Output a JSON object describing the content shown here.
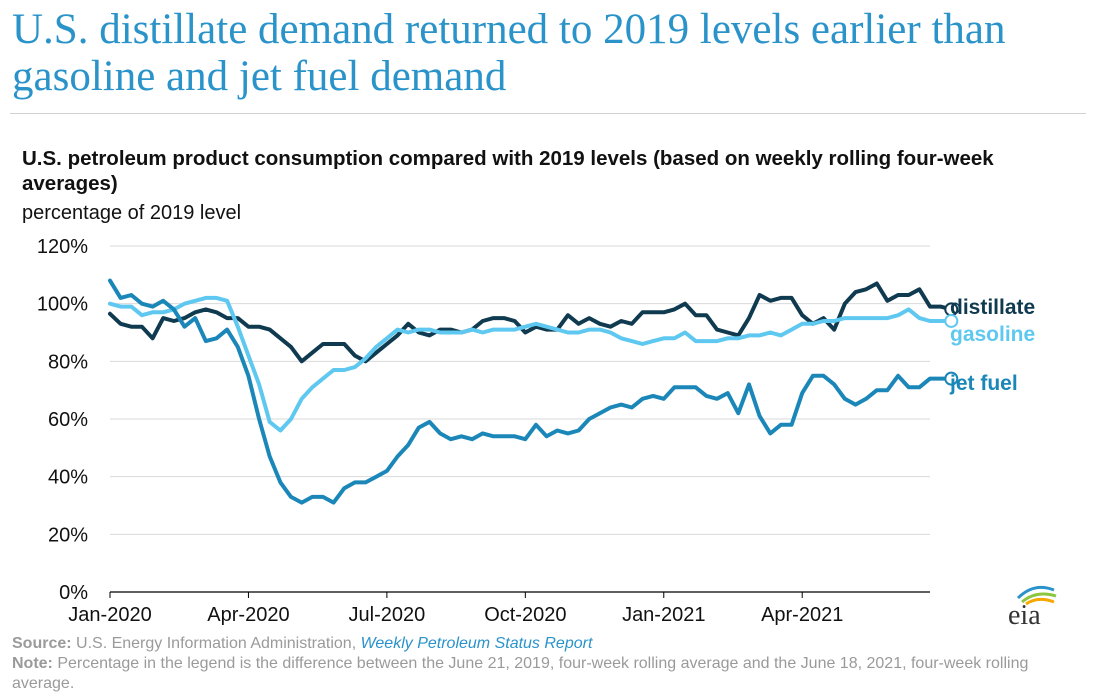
{
  "headline": "U.S. distillate demand returned to 2019 levels earlier than gasoline and jet fuel demand",
  "subtitle": "U.S. petroleum product consumption compared with 2019 levels (based on weekly rolling four-week averages)",
  "unit_label": "percentage of 2019 level",
  "footer": {
    "source_label": "Source:",
    "source_text": " U.S. Energy Information Administration, ",
    "source_link": "Weekly Petroleum Status Report",
    "note_label": "Note:",
    "note_text": " Percentage in the legend is the difference between the June 21, 2019, four-week rolling average and the June 18, 2021, four-week rolling average."
  },
  "logo_text": "eia",
  "colors": {
    "distillate": "#0f3a4f",
    "gasoline": "#5fc8f0",
    "jet_fuel": "#1b87b8",
    "grid": "#d9d9d9",
    "axis": "#000000"
  },
  "chart_data": {
    "type": "line",
    "title": "U.S. petroleum product consumption compared with 2019 levels (based on weekly rolling four-week averages)",
    "ylabel": "percentage of 2019 level",
    "ylim": [
      0,
      120
    ],
    "yticks": [
      0,
      20,
      40,
      60,
      80,
      100,
      120
    ],
    "ytick_labels": [
      "0%",
      "20%",
      "40%",
      "60%",
      "80%",
      "100%",
      "120%"
    ],
    "x_start_week": 0,
    "x_end_week": 77,
    "xticks": [
      {
        "label": "Jan-2020",
        "week": 0
      },
      {
        "label": "Apr-2020",
        "week": 13
      },
      {
        "label": "Jul-2020",
        "week": 26
      },
      {
        "label": "Oct-2020",
        "week": 39
      },
      {
        "label": "Jan-2021",
        "week": 52
      },
      {
        "label": "Apr-2021",
        "week": 65
      }
    ],
    "grid": true,
    "legend_position": "right, inline at series ends",
    "series": [
      {
        "name": "distillate",
        "color_key": "distillate",
        "values": [
          96.5,
          93,
          92,
          92,
          88,
          95,
          94,
          95,
          97,
          98,
          97,
          95,
          95,
          92,
          92,
          91,
          88,
          85,
          80,
          83,
          86,
          86,
          86,
          82,
          80,
          83,
          86,
          89,
          93,
          90,
          89,
          91,
          91,
          90,
          91,
          94,
          95,
          95,
          94,
          90,
          92,
          91,
          91,
          96,
          93,
          95,
          93,
          92,
          94,
          93,
          97,
          97,
          97,
          98,
          100,
          96,
          96,
          91,
          90,
          89,
          95,
          103,
          101,
          102,
          102,
          96,
          93,
          95,
          91,
          100,
          104,
          105,
          107,
          101,
          103,
          103,
          105,
          99,
          99,
          98
        ]
      },
      {
        "name": "gasoline",
        "color_key": "gasoline",
        "values": [
          100,
          99,
          99,
          96,
          97,
          97,
          98,
          100,
          101,
          102,
          102,
          101,
          92,
          82,
          72,
          59,
          56,
          60,
          67,
          71,
          74,
          77,
          77,
          78,
          81,
          85,
          88,
          91,
          90,
          91,
          91,
          90,
          90,
          90,
          91,
          90,
          91,
          91,
          91,
          92,
          93,
          92,
          91,
          90,
          90,
          91,
          91,
          90,
          88,
          87,
          86,
          87,
          88,
          88,
          90,
          87,
          87,
          87,
          88,
          88,
          89,
          89,
          90,
          89,
          91,
          93,
          93,
          94,
          94,
          95,
          95,
          95,
          95,
          95,
          96,
          98,
          95,
          94,
          94,
          94
        ]
      },
      {
        "name": "jet fuel",
        "color_key": "jet_fuel",
        "values": [
          108,
          102,
          103,
          100,
          99,
          101,
          98,
          92,
          95,
          87,
          88,
          91,
          85,
          75,
          60,
          47,
          38,
          33,
          31,
          33,
          33,
          31,
          36,
          38,
          38,
          40,
          42,
          47,
          51,
          57,
          59,
          55,
          53,
          54,
          53,
          55,
          54,
          54,
          54,
          53,
          58,
          54,
          56,
          55,
          56,
          60,
          62,
          64,
          65,
          64,
          67,
          68,
          67,
          71,
          71,
          71,
          68,
          67,
          69,
          62,
          72,
          61,
          55,
          58,
          58,
          69,
          75,
          75,
          72,
          67,
          65,
          67,
          70,
          70,
          75,
          71,
          71,
          74,
          74,
          74
        ]
      }
    ],
    "legend": [
      {
        "label": "distillate",
        "color_key": "distillate"
      },
      {
        "label": "gasoline",
        "color_key": "gasoline"
      },
      {
        "label": "jet fuel",
        "color_key": "jet_fuel"
      }
    ]
  }
}
